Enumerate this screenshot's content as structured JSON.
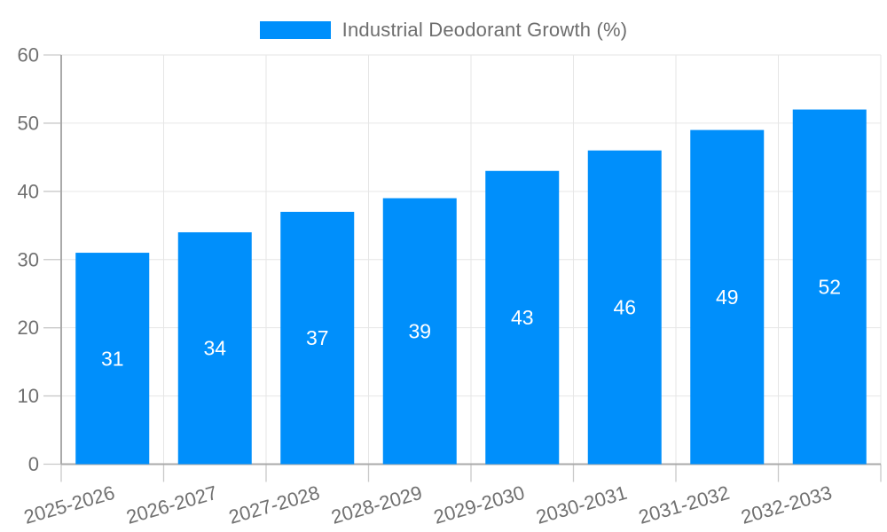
{
  "chart_data": {
    "type": "bar",
    "title": "Industrial Deodorant Growth (%)",
    "categories": [
      "2025-2026",
      "2026-2027",
      "2027-2028",
      "2028-2029",
      "2029-2030",
      "2030-2031",
      "2031-2032",
      "2032-2033"
    ],
    "values": [
      31,
      34,
      37,
      39,
      43,
      46,
      49,
      52
    ],
    "yticks": [
      0,
      10,
      20,
      30,
      40,
      50,
      60
    ],
    "ylim": [
      0,
      60
    ],
    "xlabel": "",
    "ylabel": "",
    "grid": true,
    "legend_position": "top-center",
    "value_labels_inside_bars": true,
    "colors": {
      "bar": "#008FFB",
      "value_label": "#ffffff",
      "axis_text": "#707070",
      "legend_text": "#6e6e6e"
    }
  }
}
